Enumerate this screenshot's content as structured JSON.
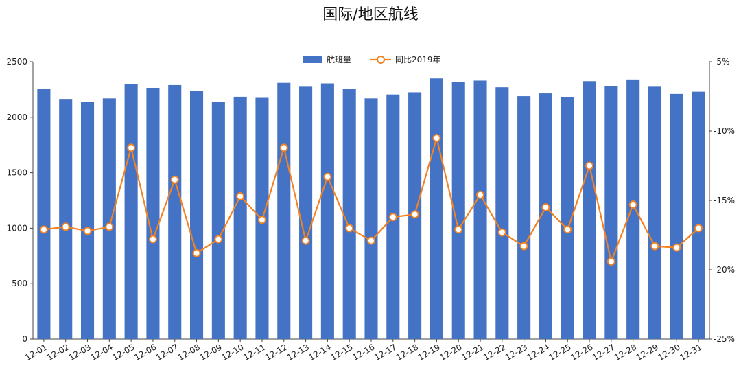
{
  "chart_data": {
    "type": "bar+line",
    "title": "国际/地区航线",
    "categories": [
      "12-01",
      "12-02",
      "12-03",
      "12-04",
      "12-05",
      "12-06",
      "12-07",
      "12-08",
      "12-09",
      "12-10",
      "12-11",
      "12-12",
      "12-13",
      "12-14",
      "12-15",
      "12-16",
      "12-17",
      "12-18",
      "12-19",
      "12-20",
      "12-21",
      "12-22",
      "12-23",
      "12-24",
      "12-25",
      "12-26",
      "12-27",
      "12-28",
      "12-29",
      "12-30",
      "12-31"
    ],
    "series": [
      {
        "name": "航班量",
        "type": "bar",
        "axis": "left",
        "color": "#4472C4",
        "values": [
          2255,
          2165,
          2135,
          2170,
          2300,
          2265,
          2290,
          2235,
          2135,
          2185,
          2175,
          2310,
          2275,
          2305,
          2255,
          2170,
          2205,
          2225,
          2350,
          2320,
          2330,
          2270,
          2190,
          2215,
          2180,
          2325,
          2280,
          2340,
          2275,
          2210,
          2230
        ]
      },
      {
        "name": "同比2019年",
        "type": "line",
        "axis": "right",
        "color": "#F28222",
        "values": [
          -17.1,
          -16.9,
          -17.2,
          -16.9,
          -11.2,
          -17.8,
          -13.5,
          -18.8,
          -17.8,
          -14.7,
          -16.4,
          -11.2,
          -17.9,
          -13.3,
          -17.0,
          -17.9,
          -16.2,
          -16.0,
          -10.5,
          -17.1,
          -14.6,
          -17.3,
          -18.3,
          -15.5,
          -17.1,
          -12.5,
          -19.4,
          -15.3,
          -18.3,
          -18.4,
          -17.0
        ]
      }
    ],
    "y_left": {
      "min": 0,
      "max": 2500,
      "ticks": [
        0,
        500,
        1000,
        1500,
        2000,
        2500
      ]
    },
    "y_right": {
      "min": -25,
      "max": -5,
      "ticks": [
        -5,
        -10,
        -15,
        -20,
        -25
      ],
      "tick_labels": [
        "-5%",
        "-10%",
        "-15%",
        "-20%",
        "-25%"
      ]
    },
    "legend": {
      "position": "top-center",
      "items": [
        "航班量",
        "同比2019年"
      ]
    },
    "grid": false
  }
}
